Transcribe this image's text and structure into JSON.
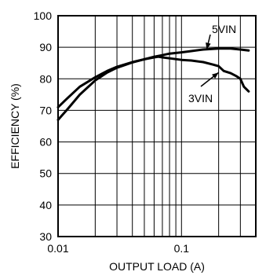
{
  "chart_data": {
    "type": "line",
    "title": "",
    "xlabel": "OUTPUT LOAD (A)",
    "ylabel": "EFFICIENCY (%)",
    "xscale": "log",
    "xlim": [
      0.01,
      0.4
    ],
    "ylim": [
      30,
      100
    ],
    "grid": true,
    "legend": "inline labels with arrows",
    "x_tick_labels": [
      "0.01",
      "0.1"
    ],
    "y_tick_labels": [
      "30",
      "40",
      "50",
      "60",
      "70",
      "80",
      "90",
      "100"
    ],
    "series": [
      {
        "name": "5VIN",
        "x": [
          0.01,
          0.012,
          0.015,
          0.02,
          0.025,
          0.03,
          0.04,
          0.05,
          0.06,
          0.07,
          0.08,
          0.1,
          0.12,
          0.15,
          0.2,
          0.25,
          0.3,
          0.35
        ],
        "y": [
          67,
          70.5,
          75,
          79.5,
          82.0,
          83.5,
          85.2,
          86.2,
          87.0,
          87.5,
          88.0,
          88.4,
          88.8,
          89.3,
          89.6,
          89.6,
          89.3,
          89.0
        ]
      },
      {
        "name": "3VIN",
        "x": [
          0.01,
          0.012,
          0.015,
          0.02,
          0.025,
          0.03,
          0.04,
          0.05,
          0.06,
          0.065,
          0.07,
          0.08,
          0.1,
          0.12,
          0.15,
          0.18,
          0.2,
          0.22,
          0.25,
          0.28,
          0.3,
          0.32,
          0.35
        ],
        "y": [
          71,
          74,
          77.5,
          80.5,
          82.5,
          83.8,
          85.3,
          86.2,
          86.8,
          87.0,
          86.8,
          86.5,
          86.0,
          85.8,
          85.3,
          84.5,
          84.0,
          82.5,
          81.8,
          80.8,
          80.0,
          77.5,
          76.0
        ]
      }
    ],
    "annotations": [
      {
        "text": "5VIN",
        "series": "5VIN",
        "arrow_to": [
          0.16,
          89.3
        ]
      },
      {
        "text": "3VIN",
        "series": "3VIN",
        "arrow_to": [
          0.2,
          82.0
        ]
      }
    ]
  }
}
